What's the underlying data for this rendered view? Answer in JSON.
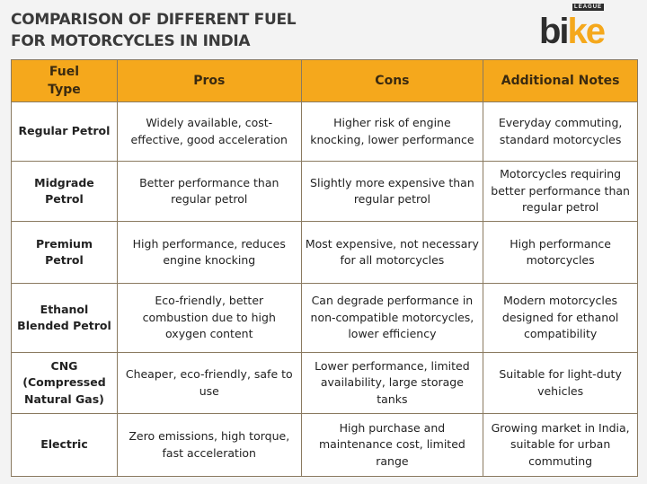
{
  "title": [
    "COMPARISON OF DIFFERENT FUEL",
    "FOR MOTORCYCLES IN INDIA"
  ],
  "logo": {
    "text_dark": "bi",
    "text_accent": "ke",
    "tag": "LEAGUE"
  },
  "colors": {
    "header": "#f5a81c",
    "accent": "#f5a81c",
    "dark": "#2d2d2d"
  },
  "table": {
    "headers": [
      "Fuel\nType",
      "Pros",
      "Cons",
      "Additional Notes"
    ],
    "rows": [
      [
        "Regular Petrol",
        "Widely available, cost-effective, good acceleration",
        "Higher risk of engine knocking, lower performance",
        "Everyday commuting, standard motorcycles"
      ],
      [
        "Midgrade Petrol",
        "Better performance than regular petrol",
        "Slightly more expensive than regular petrol",
        "Motorcycles requiring better performance than regular petrol"
      ],
      [
        "Premium Petrol",
        "High performance, reduces engine knocking",
        "Most expensive, not necessary for all motorcycles",
        "High performance motorcycles"
      ],
      [
        "Ethanol Blended Petrol",
        "Eco-friendly, better combustion due to high oxygen content",
        "Can degrade performance in non-compatible motorcycles, lower efficiency",
        "Modern motorcycles designed for ethanol compatibility"
      ],
      [
        "CNG (Compressed Natural Gas)",
        "Cheaper, eco-friendly, safe to use",
        "Lower performance, limited availability, large storage tanks",
        "Suitable for light-duty vehicles"
      ],
      [
        "Electric",
        "Zero emissions, high torque, fast acceleration",
        "High purchase and maintenance cost, limited range",
        "Growing market in India, suitable for urban commuting"
      ]
    ]
  }
}
